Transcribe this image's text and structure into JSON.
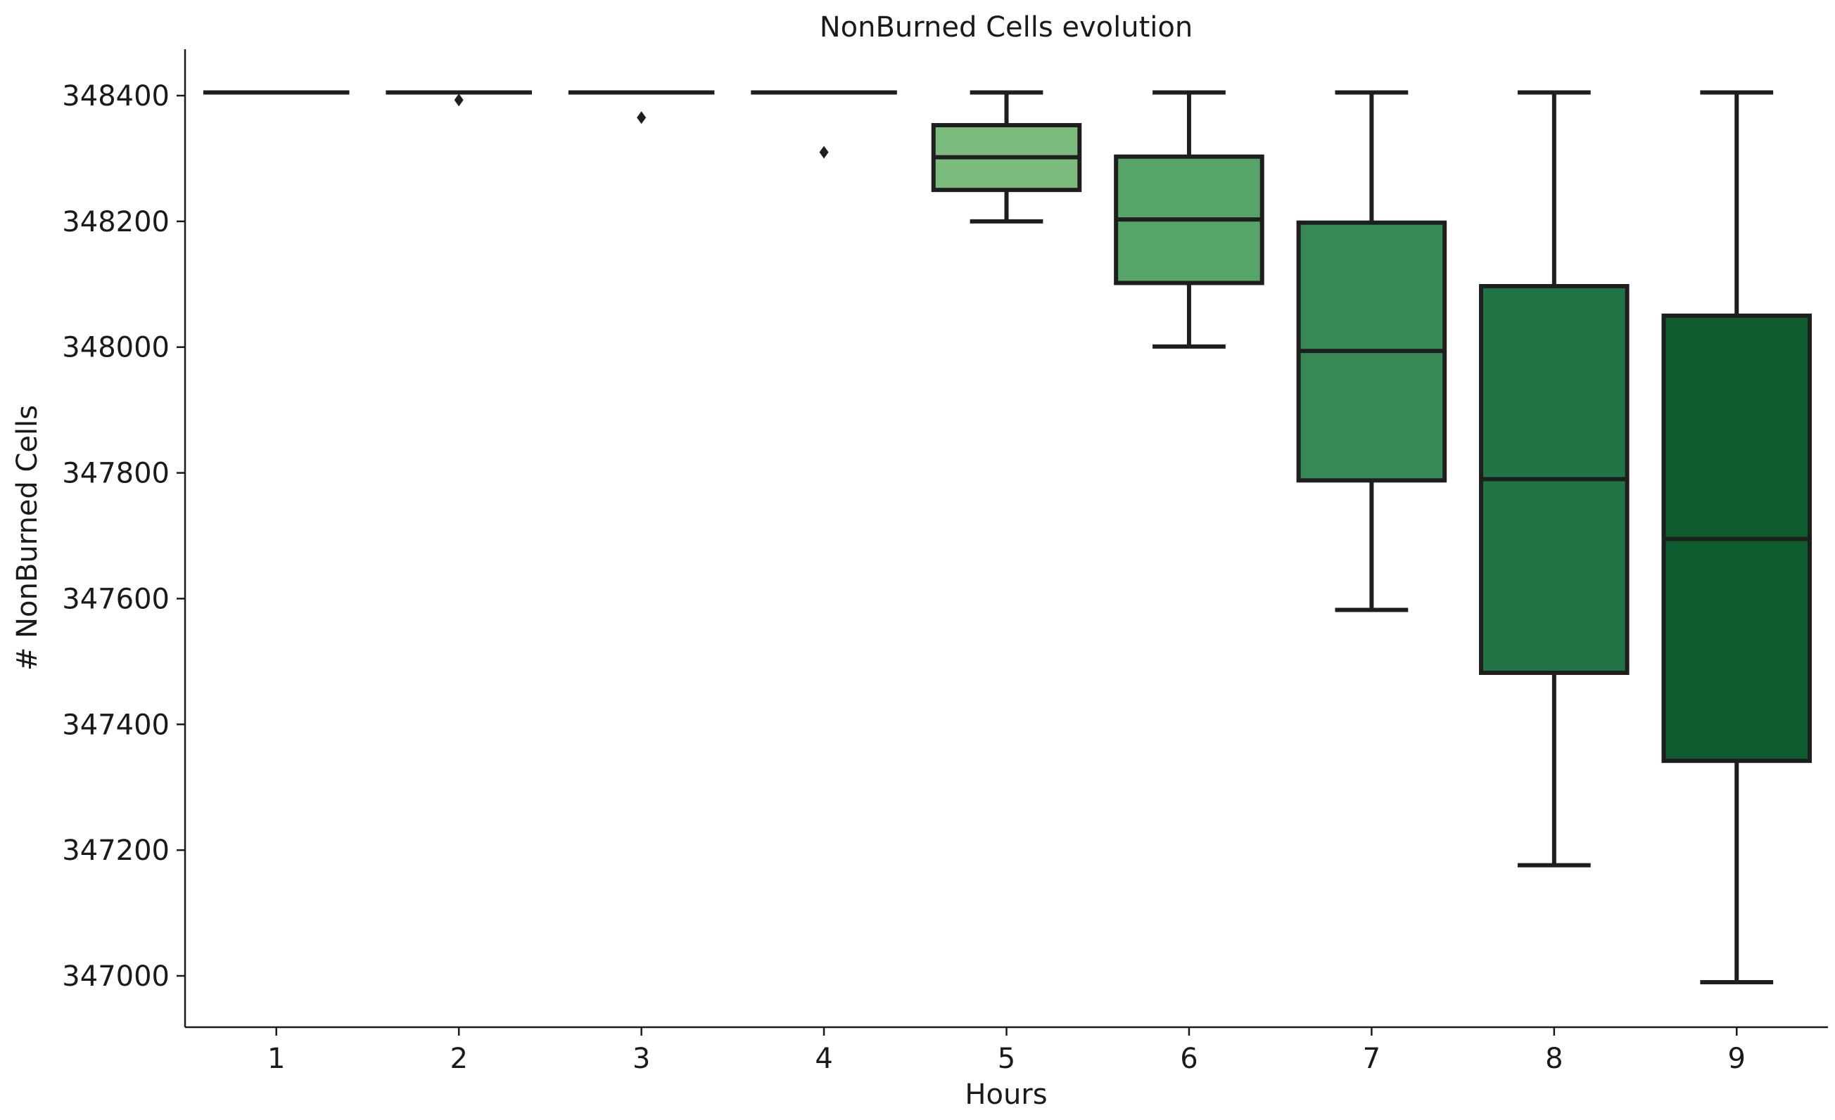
{
  "chart_data": {
    "type": "box",
    "title": "NonBurned Cells evolution",
    "xlabel": "Hours",
    "ylabel": "# NonBurned Cells",
    "categories": [
      "1",
      "2",
      "3",
      "4",
      "5",
      "6",
      "7",
      "8",
      "9"
    ],
    "yticks": [
      347000,
      347200,
      347400,
      347600,
      347800,
      348000,
      348200,
      348400
    ],
    "ytick_labels": [
      "347000",
      "347200",
      "347400",
      "347600",
      "347800",
      "348000",
      "348200",
      "348400"
    ],
    "ylim": [
      346920,
      348475
    ],
    "grid": false,
    "edge_color": "#1e1e1e",
    "boxes": [
      {
        "category": "1",
        "whisker_low": 348405,
        "q1": 348405,
        "median": 348405,
        "q3": 348405,
        "whisker_high": 348405,
        "outliers": [],
        "color": "#f7fcf5"
      },
      {
        "category": "2",
        "whisker_low": 348405,
        "q1": 348405,
        "median": 348405,
        "q3": 348405,
        "whisker_high": 348405,
        "outliers": [
          348393
        ],
        "color": "#e5f5e0"
      },
      {
        "category": "3",
        "whisker_low": 348405,
        "q1": 348405,
        "median": 348405,
        "q3": 348405,
        "whisker_high": 348405,
        "outliers": [
          348365
        ],
        "color": "#c7e9c0"
      },
      {
        "category": "4",
        "whisker_low": 348405,
        "q1": 348405,
        "median": 348405,
        "q3": 348405,
        "whisker_high": 348405,
        "outliers": [
          348310
        ],
        "color": "#a1d99b"
      },
      {
        "category": "5",
        "whisker_low": 348200,
        "q1": 348250,
        "median": 348302,
        "q3": 348353,
        "whisker_high": 348405,
        "outliers": [],
        "color": "#7bbb7d"
      },
      {
        "category": "6",
        "whisker_low": 348001,
        "q1": 348102,
        "median": 348203,
        "q3": 348303,
        "whisker_high": 348405,
        "outliers": [],
        "color": "#56a468"
      },
      {
        "category": "7",
        "whisker_low": 347582,
        "q1": 347788,
        "median": 347994,
        "q3": 348198,
        "whisker_high": 348405,
        "outliers": [],
        "color": "#368954"
      },
      {
        "category": "8",
        "whisker_low": 347176,
        "q1": 347482,
        "median": 347790,
        "q3": 348097,
        "whisker_high": 348405,
        "outliers": [],
        "color": "#217544"
      },
      {
        "category": "9",
        "whisker_low": 346990,
        "q1": 347342,
        "median": 347695,
        "q3": 348050,
        "whisker_high": 348405,
        "outliers": [],
        "color": "#0e5b2d"
      }
    ]
  }
}
